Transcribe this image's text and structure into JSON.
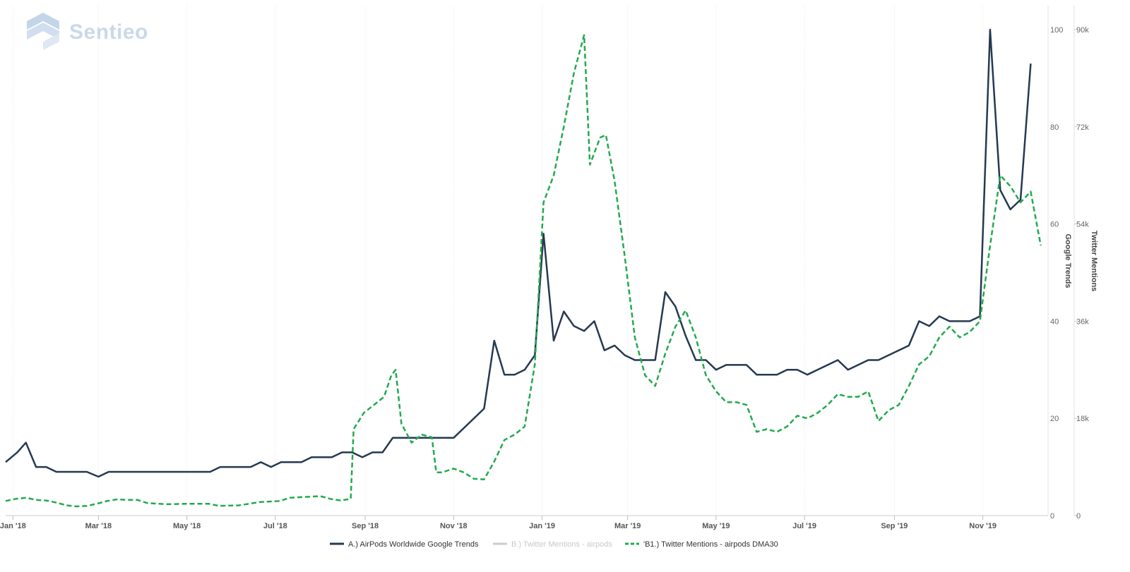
{
  "brand": {
    "name": "Sentieo",
    "color": "#c9d9ea"
  },
  "chart_data": {
    "type": "line",
    "x_labels": [
      "Jan '18",
      "Mar '18",
      "May '18",
      "Jul '18",
      "Sep '18",
      "Nov '18",
      "Jan '19",
      "Mar '19",
      "May '19",
      "Jul '19",
      "Sep '19",
      "Nov '19"
    ],
    "x_tick_dates": [
      "2018-01-01",
      "2018-03-01",
      "2018-05-01",
      "2018-07-01",
      "2018-09-01",
      "2018-11-01",
      "2019-01-01",
      "2019-03-01",
      "2019-05-01",
      "2019-07-01",
      "2019-09-01",
      "2019-11-01"
    ],
    "x_range": [
      "2017-12-27",
      "2019-12-16"
    ],
    "y_left": {
      "label": "Google Trends",
      "ticks": [
        "0",
        "20",
        "40",
        "60",
        "80",
        "100"
      ],
      "range": [
        0,
        100
      ]
    },
    "y_right": {
      "label": "Twitter Mentions",
      "ticks": [
        "0",
        "18k",
        "36k",
        "54k",
        "72k",
        "90k"
      ],
      "range": [
        0,
        90000
      ]
    },
    "grid": "vertical",
    "legend_position": "bottom-center",
    "series": [
      {
        "name": "A.) AirPods Worldwide Google Trends",
        "axis": "left",
        "color": "#253951",
        "style": "solid",
        "points": [
          [
            "2017-12-27",
            11
          ],
          [
            "2018-01-04",
            13
          ],
          [
            "2018-01-10",
            15
          ],
          [
            "2018-01-17",
            10
          ],
          [
            "2018-01-24",
            10
          ],
          [
            "2018-01-31",
            9
          ],
          [
            "2018-02-07",
            9
          ],
          [
            "2018-02-14",
            9
          ],
          [
            "2018-02-21",
            9
          ],
          [
            "2018-03-01",
            8
          ],
          [
            "2018-03-08",
            9
          ],
          [
            "2018-03-15",
            9
          ],
          [
            "2018-03-22",
            9
          ],
          [
            "2018-04-05",
            9
          ],
          [
            "2018-04-19",
            9
          ],
          [
            "2018-05-03",
            9
          ],
          [
            "2018-05-10",
            9
          ],
          [
            "2018-05-17",
            9
          ],
          [
            "2018-05-24",
            10
          ],
          [
            "2018-05-31",
            10
          ],
          [
            "2018-06-14",
            10
          ],
          [
            "2018-06-21",
            11
          ],
          [
            "2018-06-28",
            10
          ],
          [
            "2018-07-05",
            11
          ],
          [
            "2018-07-12",
            11
          ],
          [
            "2018-07-19",
            11
          ],
          [
            "2018-07-26",
            12
          ],
          [
            "2018-08-02",
            12
          ],
          [
            "2018-08-09",
            12
          ],
          [
            "2018-08-16",
            13
          ],
          [
            "2018-08-23",
            13
          ],
          [
            "2018-08-30",
            12
          ],
          [
            "2018-09-06",
            13
          ],
          [
            "2018-09-13",
            13
          ],
          [
            "2018-09-20",
            16
          ],
          [
            "2018-09-27",
            16
          ],
          [
            "2018-10-04",
            16
          ],
          [
            "2018-10-11",
            16
          ],
          [
            "2018-10-18",
            16
          ],
          [
            "2018-10-25",
            16
          ],
          [
            "2018-11-01",
            16
          ],
          [
            "2018-11-22",
            22
          ],
          [
            "2018-11-29",
            36
          ],
          [
            "2018-12-06",
            29
          ],
          [
            "2018-12-13",
            29
          ],
          [
            "2018-12-20",
            30
          ],
          [
            "2018-12-27",
            33
          ],
          [
            "2019-01-02",
            58
          ],
          [
            "2019-01-09",
            36
          ],
          [
            "2019-01-16",
            42
          ],
          [
            "2019-01-23",
            39
          ],
          [
            "2019-01-30",
            38
          ],
          [
            "2019-02-06",
            40
          ],
          [
            "2019-02-13",
            34
          ],
          [
            "2019-02-20",
            35
          ],
          [
            "2019-02-27",
            33
          ],
          [
            "2019-03-06",
            32
          ],
          [
            "2019-03-13",
            32
          ],
          [
            "2019-03-20",
            32
          ],
          [
            "2019-03-27",
            46
          ],
          [
            "2019-04-03",
            43
          ],
          [
            "2019-04-10",
            37
          ],
          [
            "2019-04-17",
            32
          ],
          [
            "2019-04-24",
            32
          ],
          [
            "2019-05-01",
            30
          ],
          [
            "2019-05-08",
            31
          ],
          [
            "2019-05-15",
            31
          ],
          [
            "2019-05-22",
            31
          ],
          [
            "2019-05-29",
            29
          ],
          [
            "2019-06-05",
            29
          ],
          [
            "2019-06-12",
            29
          ],
          [
            "2019-06-19",
            30
          ],
          [
            "2019-06-26",
            30
          ],
          [
            "2019-07-03",
            29
          ],
          [
            "2019-07-10",
            30
          ],
          [
            "2019-07-17",
            31
          ],
          [
            "2019-07-24",
            32
          ],
          [
            "2019-07-31",
            30
          ],
          [
            "2019-08-07",
            31
          ],
          [
            "2019-08-14",
            32
          ],
          [
            "2019-08-21",
            32
          ],
          [
            "2019-08-28",
            33
          ],
          [
            "2019-09-04",
            34
          ],
          [
            "2019-09-11",
            35
          ],
          [
            "2019-09-18",
            40
          ],
          [
            "2019-09-25",
            39
          ],
          [
            "2019-10-02",
            41
          ],
          [
            "2019-10-09",
            40
          ],
          [
            "2019-10-16",
            40
          ],
          [
            "2019-10-23",
            40
          ],
          [
            "2019-10-30",
            41
          ],
          [
            "2019-11-06",
            100
          ],
          [
            "2019-11-13",
            67
          ],
          [
            "2019-11-20",
            63
          ],
          [
            "2019-11-27",
            65
          ],
          [
            "2019-12-04",
            93
          ]
        ]
      },
      {
        "name": "B.) Twitter Mentions - airpods",
        "axis": "right",
        "color": "#cccccc",
        "style": "solid",
        "visible": false,
        "points": []
      },
      {
        "name": "'B1.) Twitter Mentions - airpods DMA30",
        "axis": "right",
        "color": "#22aa4c",
        "style": "dashed",
        "points": [
          [
            "2017-12-27",
            2700
          ],
          [
            "2018-01-03",
            3100
          ],
          [
            "2018-01-10",
            3300
          ],
          [
            "2018-01-17",
            2900
          ],
          [
            "2018-01-24",
            2800
          ],
          [
            "2018-01-31",
            2400
          ],
          [
            "2018-02-07",
            1900
          ],
          [
            "2018-02-14",
            1700
          ],
          [
            "2018-02-21",
            1800
          ],
          [
            "2018-02-28",
            2200
          ],
          [
            "2018-03-07",
            2700
          ],
          [
            "2018-03-14",
            3000
          ],
          [
            "2018-03-21",
            2900
          ],
          [
            "2018-03-28",
            2900
          ],
          [
            "2018-04-04",
            2300
          ],
          [
            "2018-04-18",
            2100
          ],
          [
            "2018-05-02",
            2200
          ],
          [
            "2018-05-16",
            2200
          ],
          [
            "2018-05-23",
            1800
          ],
          [
            "2018-06-06",
            1900
          ],
          [
            "2018-06-20",
            2500
          ],
          [
            "2018-07-04",
            2700
          ],
          [
            "2018-07-11",
            3300
          ],
          [
            "2018-07-25",
            3500
          ],
          [
            "2018-08-01",
            3600
          ],
          [
            "2018-08-08",
            3100
          ],
          [
            "2018-08-15",
            2800
          ],
          [
            "2018-08-22",
            3100
          ],
          [
            "2018-08-24",
            16000
          ],
          [
            "2018-08-31",
            19000
          ],
          [
            "2018-09-07",
            20500
          ],
          [
            "2018-09-14",
            22000
          ],
          [
            "2018-09-19",
            26000
          ],
          [
            "2018-09-22",
            27000
          ],
          [
            "2018-09-26",
            17000
          ],
          [
            "2018-10-03",
            13500
          ],
          [
            "2018-10-10",
            15000
          ],
          [
            "2018-10-17",
            14500
          ],
          [
            "2018-10-20",
            8000
          ],
          [
            "2018-10-24",
            8000
          ],
          [
            "2018-11-01",
            8700
          ],
          [
            "2018-11-08",
            8000
          ],
          [
            "2018-11-15",
            6800
          ],
          [
            "2018-11-22",
            6700
          ],
          [
            "2018-11-29",
            10000
          ],
          [
            "2018-12-06",
            14000
          ],
          [
            "2018-12-13",
            15000
          ],
          [
            "2018-12-20",
            16500
          ],
          [
            "2018-12-27",
            28000
          ],
          [
            "2019-01-02",
            58000
          ],
          [
            "2019-01-09",
            63000
          ],
          [
            "2019-01-16",
            72000
          ],
          [
            "2019-01-23",
            82000
          ],
          [
            "2019-01-30",
            89000
          ],
          [
            "2019-02-03",
            65000
          ],
          [
            "2019-02-10",
            70000
          ],
          [
            "2019-02-14",
            70500
          ],
          [
            "2019-02-20",
            62000
          ],
          [
            "2019-02-27",
            48000
          ],
          [
            "2019-03-06",
            33000
          ],
          [
            "2019-03-13",
            26000
          ],
          [
            "2019-03-20",
            24000
          ],
          [
            "2019-03-27",
            30000
          ],
          [
            "2019-04-03",
            35000
          ],
          [
            "2019-04-10",
            38000
          ],
          [
            "2019-04-17",
            33000
          ],
          [
            "2019-04-24",
            26000
          ],
          [
            "2019-05-01",
            23000
          ],
          [
            "2019-05-08",
            21000
          ],
          [
            "2019-05-15",
            21000
          ],
          [
            "2019-05-22",
            20500
          ],
          [
            "2019-05-29",
            15500
          ],
          [
            "2019-06-05",
            16000
          ],
          [
            "2019-06-12",
            15500
          ],
          [
            "2019-06-19",
            16500
          ],
          [
            "2019-06-26",
            18500
          ],
          [
            "2019-07-03",
            18000
          ],
          [
            "2019-07-10",
            19000
          ],
          [
            "2019-07-17",
            20500
          ],
          [
            "2019-07-24",
            22500
          ],
          [
            "2019-07-31",
            22000
          ],
          [
            "2019-08-07",
            22000
          ],
          [
            "2019-08-14",
            23000
          ],
          [
            "2019-08-21",
            17500
          ],
          [
            "2019-08-28",
            19500
          ],
          [
            "2019-09-04",
            20500
          ],
          [
            "2019-09-11",
            24000
          ],
          [
            "2019-09-18",
            28000
          ],
          [
            "2019-09-25",
            29500
          ],
          [
            "2019-10-02",
            33000
          ],
          [
            "2019-10-09",
            35000
          ],
          [
            "2019-10-16",
            33000
          ],
          [
            "2019-10-23",
            34000
          ],
          [
            "2019-10-30",
            36000
          ],
          [
            "2019-11-06",
            50000
          ],
          [
            "2019-11-13",
            63000
          ],
          [
            "2019-11-20",
            61000
          ],
          [
            "2019-11-27",
            58000
          ],
          [
            "2019-12-04",
            60000
          ],
          [
            "2019-12-11",
            50000
          ]
        ]
      }
    ]
  }
}
